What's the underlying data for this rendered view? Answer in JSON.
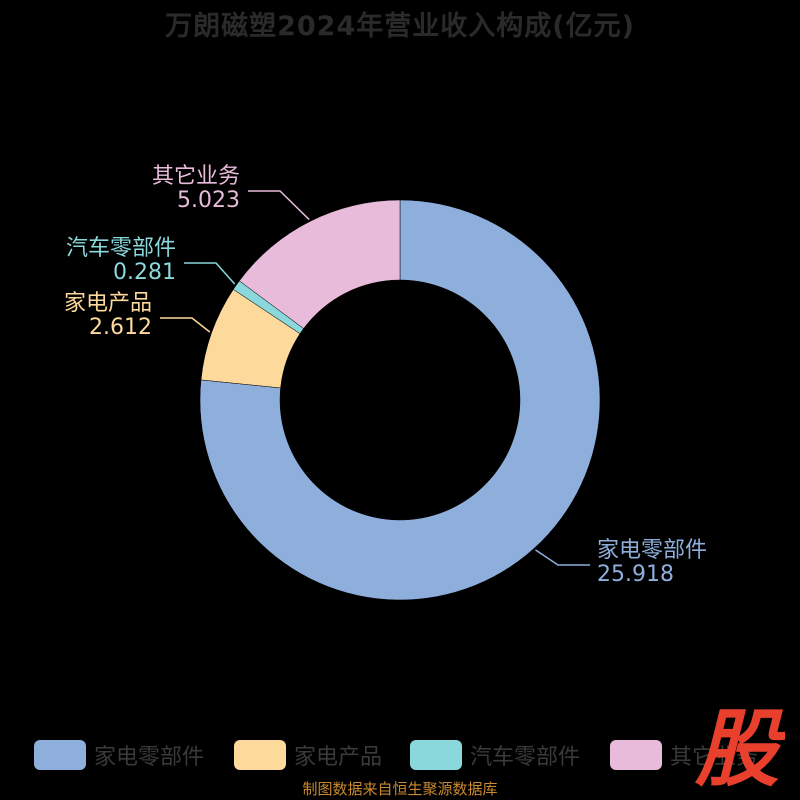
{
  "chart_data": {
    "type": "pie",
    "title": "万朗磁塑2024年营业收入构成(亿元)",
    "donut": true,
    "categories": [
      "家电零部件",
      "家电产品",
      "汽车零部件",
      "其它业务"
    ],
    "values": [
      25.918,
      2.612,
      0.281,
      5.023
    ],
    "value_labels": [
      "25.918",
      "2.612",
      "0.281",
      "5.023"
    ],
    "colors": [
      "#8eafdc",
      "#fdd99c",
      "#8ad8db",
      "#e8bbda"
    ],
    "legend_position": "bottom"
  },
  "legend": [
    {
      "label": "家电零部件",
      "color": "#8eafdc"
    },
    {
      "label": "家电产品",
      "color": "#fdd99c"
    },
    {
      "label": "汽车零部件",
      "color": "#8ad8db"
    },
    {
      "label": "其它业务",
      "color": "#e8bbda"
    }
  ],
  "brand_logo_text": "股",
  "source_note": "制图数据来自恒生聚源数据库"
}
